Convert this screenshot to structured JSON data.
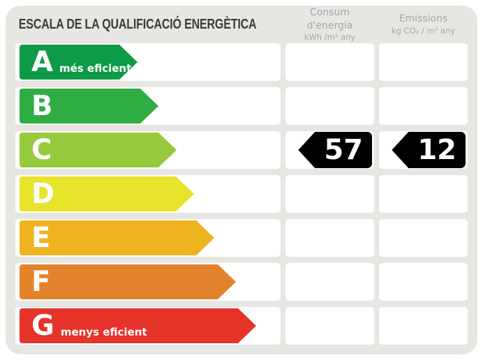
{
  "page": {
    "background": "#ffffff",
    "card_background": "#e7e6e3"
  },
  "header": {
    "title": "ESCALA DE LA QUALIFICACIÓ ENERGÈTICA",
    "columns": [
      {
        "label": "Consum d'energia",
        "unit": "kWh /m² any"
      },
      {
        "label": "Emissions",
        "unit": "kg CO₂ / m² any"
      }
    ]
  },
  "scale": {
    "rows": [
      {
        "letter": "A",
        "note": "més eficient",
        "color": "#0d9b48",
        "arrow_width": 169
      },
      {
        "letter": "B",
        "note": "",
        "color": "#2fad43",
        "arrow_width": 199
      },
      {
        "letter": "C",
        "note": "",
        "color": "#97c93c",
        "arrow_width": 225
      },
      {
        "letter": "D",
        "note": "",
        "color": "#e8e32b",
        "arrow_width": 250
      },
      {
        "letter": "E",
        "note": "",
        "color": "#eeb31f",
        "arrow_width": 279
      },
      {
        "letter": "F",
        "note": "",
        "color": "#e2832c",
        "arrow_width": 310
      },
      {
        "letter": "G",
        "note": "menys eficient",
        "color": "#e6332a",
        "arrow_width": 339
      }
    ]
  },
  "values": {
    "rating": "C",
    "consum": "57",
    "emissions": "12",
    "marker_color": "#000000"
  },
  "chart_data": {
    "type": "bar",
    "title": "ESCALA DE LA QUALIFICACIÓ ENERGÈTICA",
    "categories": [
      "A",
      "B",
      "C",
      "D",
      "E",
      "F",
      "G"
    ],
    "values": [
      169,
      199,
      225,
      250,
      279,
      310,
      339
    ],
    "bar_colors": [
      "#0d9b48",
      "#2fad43",
      "#97c93c",
      "#e8e32b",
      "#eeb31f",
      "#e2832c",
      "#e6332a"
    ],
    "annotations": {
      "A": "més eficient",
      "G": "menys eficient",
      "rating_letter": "C",
      "consum_energia_kwh_m2_any": 57,
      "emissions_kg_co2_m2_any": 12
    },
    "xlabel": "",
    "ylabel": "",
    "legend": [
      "Consum d'energia kWh /m² any",
      "Emissions kg CO₂ / m² any"
    ],
    "grid": false
  }
}
